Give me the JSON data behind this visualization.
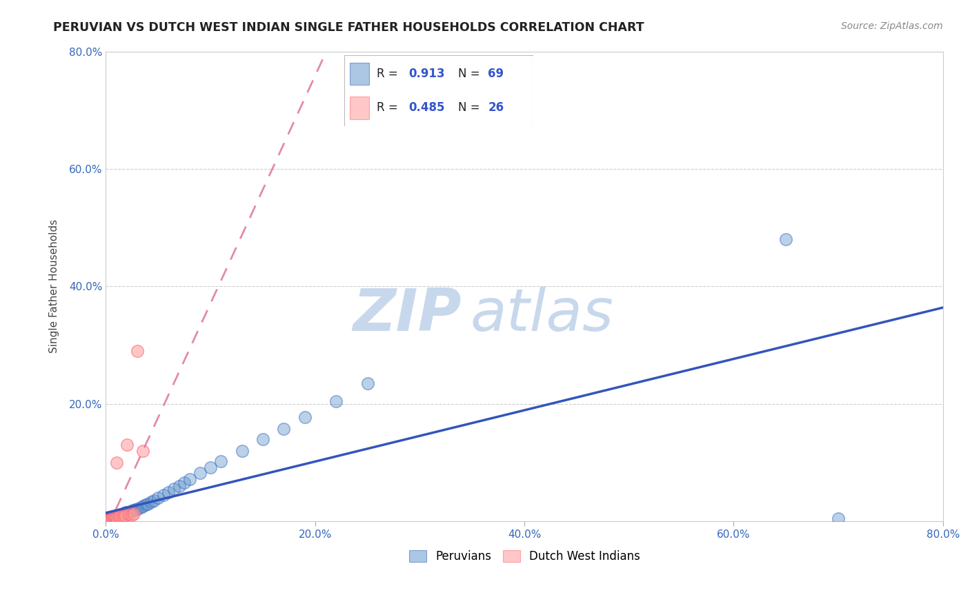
{
  "title": "PERUVIAN VS DUTCH WEST INDIAN SINGLE FATHER HOUSEHOLDS CORRELATION CHART",
  "source": "Source: ZipAtlas.com",
  "ylabel": "Single Father Households",
  "xlim": [
    0,
    0.8
  ],
  "ylim": [
    0,
    0.8
  ],
  "xticks": [
    0.0,
    0.2,
    0.4,
    0.6,
    0.8
  ],
  "yticks": [
    0.0,
    0.2,
    0.4,
    0.6,
    0.8
  ],
  "xticklabels": [
    "0.0%",
    "20.0%",
    "40.0%",
    "60.0%",
    "80.0%"
  ],
  "yticklabels": [
    "",
    "20.0%",
    "40.0%",
    "60.0%",
    "80.0%"
  ],
  "peruvian_color": "#6699CC",
  "peruvian_edge": "#3366BB",
  "dutch_color": "#FF9999",
  "dutch_edge": "#FF6677",
  "trend_peru_color": "#3355BB",
  "trend_dutch_color": "#DD7799",
  "peruvian_R": "0.913",
  "peruvian_N": "69",
  "dutch_R": "0.485",
  "dutch_N": "26",
  "watermark_zip": "ZIP",
  "watermark_atlas": "atlas",
  "watermark_color": "#C8D8EC",
  "peru_legend": "Peruvians",
  "dutch_legend": "Dutch West Indians",
  "peruvian_x": [
    0.0,
    0.001,
    0.001,
    0.001,
    0.002,
    0.002,
    0.002,
    0.002,
    0.003,
    0.003,
    0.003,
    0.003,
    0.004,
    0.004,
    0.004,
    0.005,
    0.005,
    0.005,
    0.005,
    0.006,
    0.006,
    0.007,
    0.007,
    0.008,
    0.008,
    0.009,
    0.009,
    0.01,
    0.01,
    0.011,
    0.012,
    0.013,
    0.014,
    0.015,
    0.015,
    0.016,
    0.018,
    0.019,
    0.02,
    0.021,
    0.022,
    0.024,
    0.026,
    0.028,
    0.03,
    0.033,
    0.035,
    0.038,
    0.04,
    0.043,
    0.046,
    0.05,
    0.055,
    0.06,
    0.065,
    0.07,
    0.075,
    0.08,
    0.09,
    0.1,
    0.11,
    0.13,
    0.15,
    0.17,
    0.19,
    0.22,
    0.25,
    0.65,
    0.7
  ],
  "peruvian_y": [
    0.0,
    0.001,
    0.001,
    0.002,
    0.001,
    0.002,
    0.003,
    0.002,
    0.002,
    0.003,
    0.003,
    0.004,
    0.003,
    0.004,
    0.003,
    0.004,
    0.004,
    0.005,
    0.003,
    0.004,
    0.005,
    0.005,
    0.006,
    0.005,
    0.007,
    0.006,
    0.008,
    0.007,
    0.009,
    0.008,
    0.009,
    0.01,
    0.011,
    0.011,
    0.012,
    0.013,
    0.014,
    0.015,
    0.015,
    0.016,
    0.016,
    0.018,
    0.019,
    0.02,
    0.022,
    0.024,
    0.026,
    0.028,
    0.03,
    0.033,
    0.036,
    0.04,
    0.045,
    0.05,
    0.055,
    0.06,
    0.066,
    0.072,
    0.082,
    0.092,
    0.102,
    0.12,
    0.14,
    0.158,
    0.178,
    0.205,
    0.235,
    0.48,
    0.005
  ],
  "dutch_x": [
    0.0,
    0.001,
    0.001,
    0.002,
    0.002,
    0.003,
    0.004,
    0.005,
    0.005,
    0.006,
    0.007,
    0.008,
    0.009,
    0.01,
    0.01,
    0.012,
    0.013,
    0.015,
    0.017,
    0.018,
    0.02,
    0.022,
    0.025,
    0.027,
    0.03,
    0.035
  ],
  "dutch_y": [
    0.0,
    0.001,
    0.002,
    0.001,
    0.002,
    0.002,
    0.003,
    0.003,
    0.004,
    0.003,
    0.005,
    0.004,
    0.005,
    0.006,
    0.1,
    0.007,
    0.008,
    0.009,
    0.008,
    0.01,
    0.13,
    0.012,
    0.011,
    0.013,
    0.29,
    0.12
  ]
}
